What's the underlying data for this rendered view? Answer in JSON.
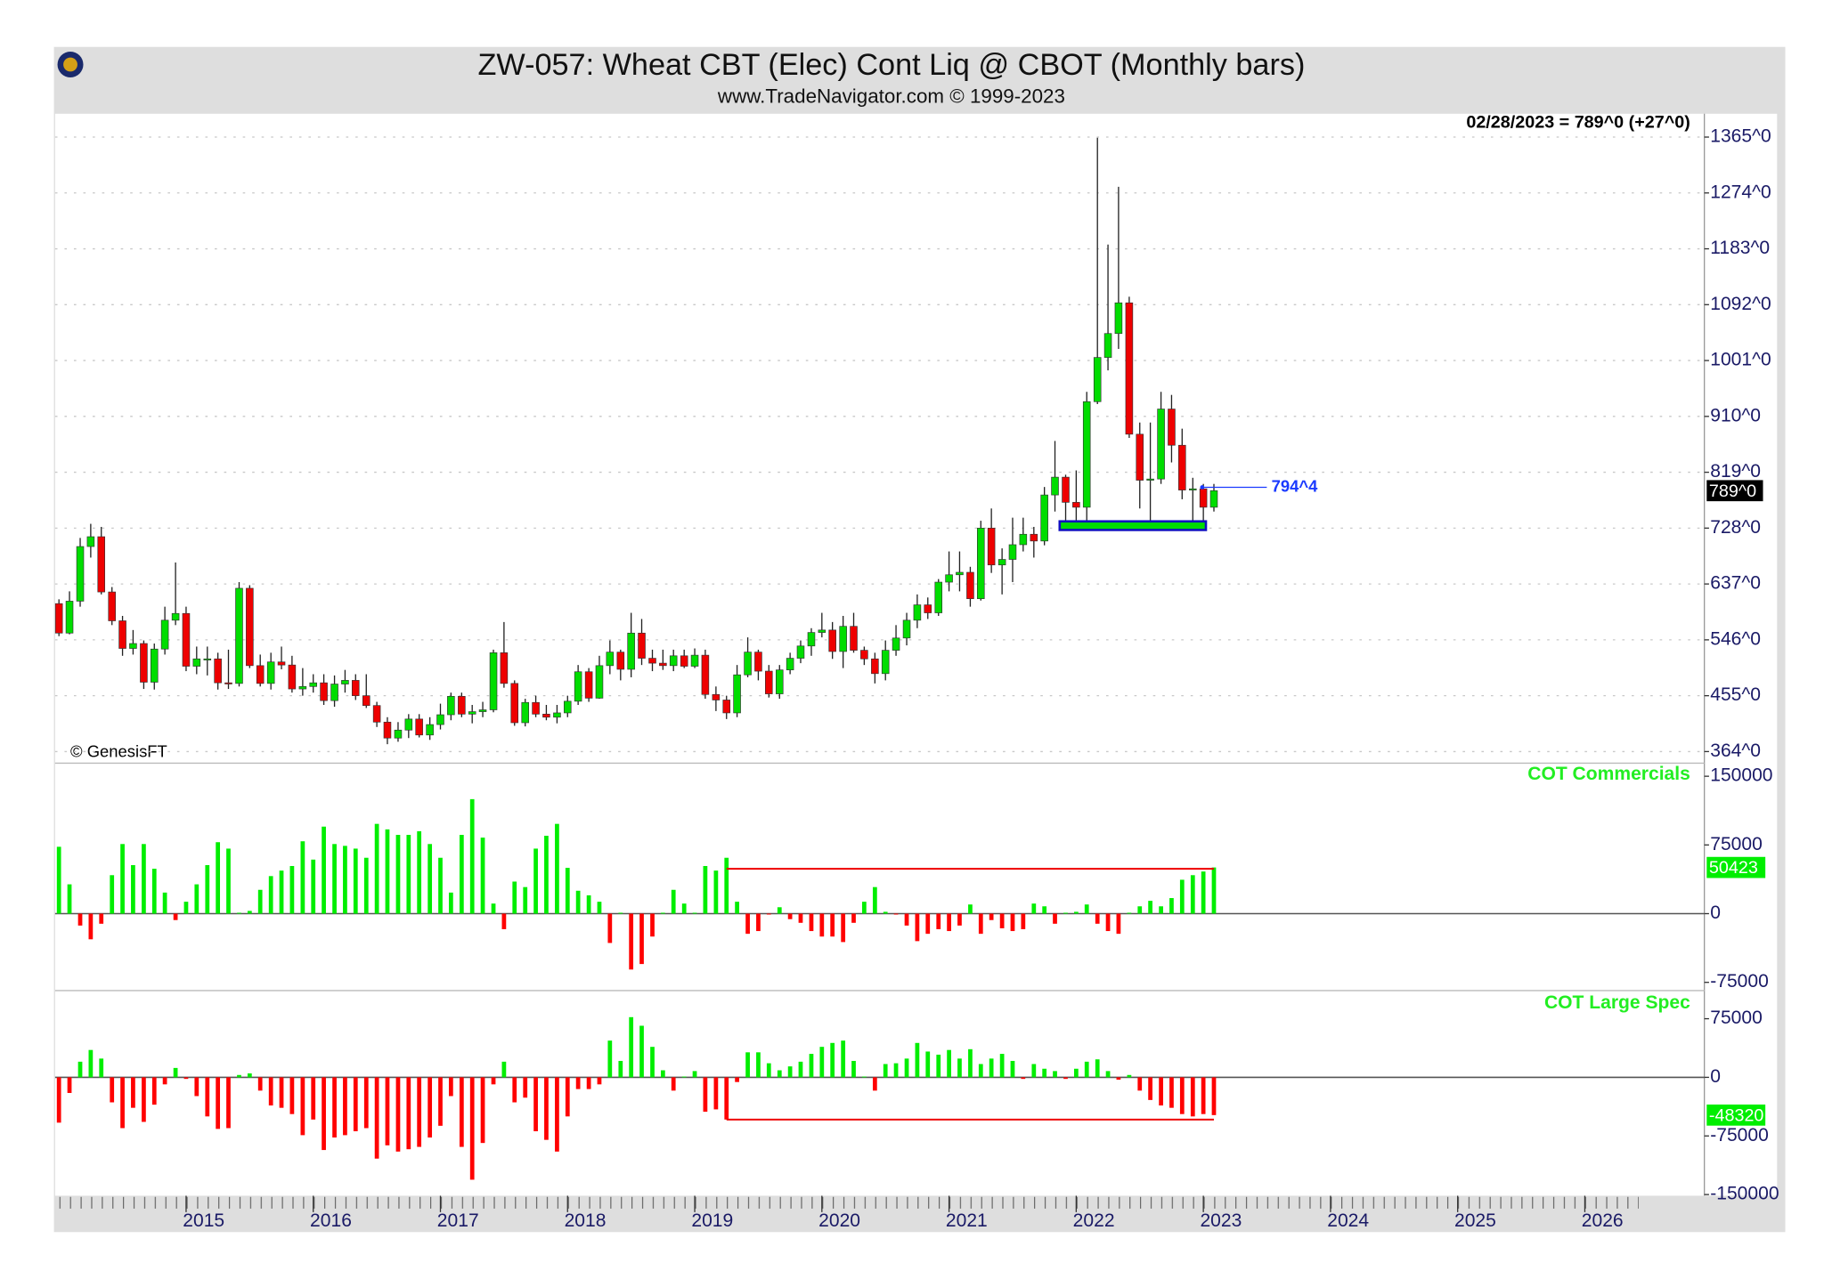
{
  "chart_data": [
    {
      "type": "candlestick",
      "title": "ZW-057:  Wheat CBT (Elec) Cont Liq @ CBOT  (Monthly bars)",
      "subtitle": "www.TradeNavigator.com © 1999-2023",
      "readout": "02/28/2023 = 789^0 (+27^0)",
      "watermark": "© GenesisFT",
      "x": [
        2014,
        2014.083,
        2014.167,
        2014.25,
        2014.333,
        2014.417,
        2014.5,
        2014.583,
        2014.667,
        2014.75,
        2014.833,
        2014.917,
        2015,
        2015.083,
        2015.167,
        2015.25,
        2015.333,
        2015.417,
        2015.5,
        2015.583,
        2015.667,
        2015.75,
        2015.833,
        2015.917,
        2016,
        2016.083,
        2016.167,
        2016.25,
        2016.333,
        2016.417,
        2016.5,
        2016.583,
        2016.667,
        2016.75,
        2016.833,
        2016.917,
        2017,
        2017.083,
        2017.167,
        2017.25,
        2017.333,
        2017.417,
        2017.5,
        2017.583,
        2017.667,
        2017.75,
        2017.833,
        2017.917,
        2018,
        2018.083,
        2018.167,
        2018.25,
        2018.333,
        2018.417,
        2018.5,
        2018.583,
        2018.667,
        2018.75,
        2018.833,
        2018.917,
        2019,
        2019.083,
        2019.167,
        2019.25,
        2019.333,
        2019.417,
        2019.5,
        2019.583,
        2019.667,
        2019.75,
        2019.833,
        2019.917,
        2020,
        2020.083,
        2020.167,
        2020.25,
        2020.333,
        2020.417,
        2020.5,
        2020.583,
        2020.667,
        2020.75,
        2020.833,
        2020.917,
        2021,
        2021.083,
        2021.167,
        2021.25,
        2021.333,
        2021.417,
        2021.5,
        2021.583,
        2021.667,
        2021.75,
        2021.833,
        2021.917,
        2022,
        2022.083,
        2022.167,
        2022.25,
        2022.333,
        2022.417,
        2022.5,
        2022.583,
        2022.667,
        2022.75,
        2022.833,
        2022.917,
        2023,
        2023.083
      ],
      "open": [
        605,
        557,
        609,
        698,
        714,
        624,
        577,
        532,
        540,
        477,
        531,
        578,
        589,
        503,
        515,
        515,
        476,
        475,
        630,
        504,
        475,
        510,
        505,
        466,
        470,
        476,
        447,
        474,
        480,
        455,
        439,
        412,
        386,
        399,
        417,
        391,
        408,
        424,
        454,
        425,
        429,
        432,
        525,
        475,
        411,
        444,
        425,
        420,
        427,
        446,
        494,
        451,
        504,
        526,
        498,
        557,
        516,
        508,
        504,
        520,
        503,
        521,
        457,
        448,
        427,
        489,
        526,
        495,
        458,
        497,
        516,
        536,
        558,
        562,
        527,
        568,
        529,
        515,
        491,
        529,
        549,
        578,
        603,
        590,
        640,
        652,
        656,
        613,
        728,
        668,
        677,
        701,
        718,
        707,
        782,
        811,
        770,
        762,
        934,
        1006,
        1045,
        1095,
        881,
        806,
        808,
        922,
        863,
        790,
        792,
        762
      ],
      "high": [
        612,
        625,
        712,
        735,
        730,
        632,
        585,
        562,
        545,
        540,
        600,
        672,
        600,
        535,
        535,
        525,
        530,
        640,
        635,
        522,
        525,
        535,
        520,
        500,
        490,
        490,
        488,
        497,
        490,
        490,
        445,
        420,
        412,
        425,
        425,
        420,
        442,
        460,
        460,
        440,
        445,
        530,
        575,
        480,
        450,
        455,
        440,
        440,
        455,
        505,
        500,
        520,
        545,
        530,
        590,
        580,
        530,
        530,
        530,
        530,
        532,
        530,
        470,
        455,
        505,
        550,
        530,
        505,
        505,
        525,
        545,
        565,
        590,
        575,
        585,
        590,
        535,
        525,
        545,
        570,
        590,
        620,
        615,
        645,
        690,
        690,
        665,
        740,
        760,
        695,
        745,
        745,
        730,
        795,
        870,
        815,
        822,
        950,
        1364,
        1190,
        1284,
        1105,
        900,
        900,
        950,
        945,
        890,
        810,
        800,
        800
      ],
      "low": [
        552,
        555,
        600,
        680,
        620,
        570,
        520,
        522,
        466,
        465,
        522,
        570,
        495,
        490,
        488,
        465,
        466,
        470,
        500,
        470,
        465,
        498,
        460,
        455,
        460,
        440,
        437,
        460,
        448,
        435,
        404,
        376,
        380,
        386,
        387,
        383,
        400,
        415,
        420,
        410,
        420,
        428,
        468,
        406,
        405,
        420,
        415,
        410,
        420,
        440,
        445,
        450,
        490,
        480,
        485,
        505,
        495,
        497,
        495,
        500,
        500,
        450,
        430,
        417,
        420,
        485,
        480,
        452,
        450,
        490,
        508,
        520,
        550,
        515,
        500,
        525,
        505,
        475,
        480,
        520,
        537,
        565,
        580,
        585,
        625,
        625,
        600,
        610,
        655,
        620,
        640,
        690,
        680,
        700,
        755,
        740,
        730,
        735,
        930,
        985,
        1020,
        875,
        760,
        740,
        800,
        835,
        775,
        740,
        730,
        755
      ],
      "close": [
        557,
        609,
        698,
        714,
        624,
        577,
        532,
        540,
        477,
        531,
        578,
        589,
        503,
        515,
        515,
        476,
        475,
        630,
        504,
        475,
        510,
        505,
        466,
        470,
        476,
        447,
        474,
        480,
        455,
        439,
        412,
        386,
        399,
        417,
        391,
        408,
        424,
        454,
        425,
        429,
        432,
        525,
        475,
        411,
        444,
        425,
        420,
        427,
        446,
        494,
        451,
        504,
        526,
        498,
        557,
        516,
        508,
        504,
        520,
        503,
        521,
        457,
        448,
        427,
        489,
        526,
        495,
        458,
        497,
        516,
        536,
        558,
        562,
        527,
        568,
        529,
        515,
        491,
        529,
        549,
        578,
        603,
        590,
        640,
        652,
        656,
        613,
        728,
        668,
        677,
        701,
        718,
        707,
        782,
        811,
        770,
        762,
        934,
        1006,
        1045,
        1095,
        881,
        806,
        808,
        922,
        863,
        790,
        792,
        762,
        789
      ],
      "up_color": "#00dd00",
      "down_color": "#ee0000",
      "xlim": [
        2013.97,
        2026.94
      ],
      "xticks": [
        2015,
        2016,
        2017,
        2018,
        2019,
        2020,
        2021,
        2022,
        2023,
        2024,
        2025,
        2026
      ],
      "ylim": [
        347,
        1403
      ],
      "yticks": [
        {
          "value": 1365,
          "label": "1365^0"
        },
        {
          "value": 1274,
          "label": "1274^0"
        },
        {
          "value": 1183,
          "label": "1183^0"
        },
        {
          "value": 1092,
          "label": "1092^0"
        },
        {
          "value": 1001,
          "label": "1001^0"
        },
        {
          "value": 910,
          "label": "910^0"
        },
        {
          "value": 819,
          "label": "819^0"
        },
        {
          "value": 728,
          "label": "728^0"
        },
        {
          "value": 637,
          "label": "637^0"
        },
        {
          "value": 546,
          "label": "546^0"
        },
        {
          "value": 455,
          "label": "455^0"
        },
        {
          "value": 364,
          "label": "364^0"
        }
      ],
      "grid": true,
      "last_label": {
        "value": 789,
        "label": "789^0"
      },
      "annotations": [
        {
          "value": 794.5,
          "label": "794^4"
        }
      ],
      "zone": {
        "x": [
          2021.87,
          2023.02
        ],
        "y": [
          725,
          739
        ],
        "color": "#00dd00",
        "edge": "#1010c0"
      }
    },
    {
      "type": "bar",
      "title": "COT Commercials",
      "values": [
        73000,
        32000,
        -13000,
        -28000,
        -11000,
        42000,
        76000,
        53000,
        76000,
        49000,
        23000,
        -7000,
        13000,
        32000,
        53000,
        78000,
        71000,
        1000,
        3000,
        26000,
        41000,
        47000,
        52000,
        79000,
        59000,
        95000,
        76000,
        74000,
        71000,
        61000,
        98000,
        92000,
        86000,
        86000,
        90000,
        76000,
        61000,
        23000,
        86000,
        125000,
        83000,
        11000,
        -17000,
        35000,
        29000,
        71000,
        85000,
        98000,
        50000,
        25000,
        20000,
        13000,
        -32000,
        1000,
        -61000,
        -55000,
        -25000,
        1000,
        26000,
        11000,
        1000,
        52000,
        47000,
        61000,
        13000,
        -22000,
        -19000,
        -1000,
        7000,
        -6000,
        -10000,
        -19000,
        -25000,
        -25000,
        -31000,
        -10000,
        13000,
        29000,
        2000,
        -1000,
        -13000,
        -30000,
        -22000,
        -17000,
        -19000,
        -13000,
        10000,
        -22000,
        -7000,
        -16000,
        -19000,
        -17000,
        11000,
        8000,
        -11000,
        1000,
        2000,
        10000,
        -11000,
        -19000,
        -22000,
        1000,
        8000,
        14000,
        8000,
        17000,
        37000,
        42000,
        46000,
        50423
      ],
      "pos_color": "#00ee00",
      "neg_color": "#ff0000",
      "ylim": [
        -84000,
        163000
      ],
      "yticks": [
        150000,
        75000,
        0,
        -75000
      ],
      "grid": false,
      "hline": {
        "value": 49000,
        "x": [
          2019.25,
          2023.083
        ],
        "color": "#ee0000"
      }
    },
    {
      "type": "bar",
      "title": "COT Large Spec",
      "values": [
        -58000,
        -20000,
        20000,
        35000,
        24000,
        -32000,
        -65000,
        -39000,
        -57000,
        -35000,
        -9000,
        12000,
        -2000,
        -24000,
        -50000,
        -66000,
        -65000,
        3000,
        5000,
        -17000,
        -36000,
        -39000,
        -47000,
        -74000,
        -54000,
        -93000,
        -77000,
        -74000,
        -69000,
        -65000,
        -104000,
        -87000,
        -95000,
        -92000,
        -89000,
        -77000,
        -62000,
        -24000,
        -89000,
        -131000,
        -84000,
        -9000,
        20000,
        -32000,
        -26000,
        -69000,
        -80000,
        -95000,
        -50000,
        -15000,
        -15000,
        -9000,
        47000,
        21000,
        77000,
        66000,
        39000,
        9000,
        -17000,
        1000,
        8000,
        -44000,
        -41000,
        -54000,
        -6000,
        32000,
        32000,
        18000,
        9000,
        14000,
        20000,
        30000,
        39000,
        44000,
        47000,
        21000,
        1000,
        -17000,
        17000,
        18000,
        24000,
        44000,
        33000,
        29000,
        35000,
        24000,
        36000,
        17000,
        24000,
        30000,
        21000,
        -2000,
        17000,
        11000,
        8000,
        -2000,
        11000,
        20000,
        23000,
        8000,
        -3000,
        3000,
        -17000,
        -29000,
        -36000,
        -39000,
        -47000,
        -50000,
        -47000,
        -48320
      ],
      "pos_color": "#00ee00",
      "neg_color": "#ff0000",
      "ylim": [
        -151500,
        111000
      ],
      "yticks": [
        75000,
        0,
        -75000,
        -150000
      ],
      "grid": false,
      "hline": {
        "value": -54000,
        "x": [
          2019.25,
          2023.083
        ],
        "color": "#ee0000"
      }
    }
  ]
}
